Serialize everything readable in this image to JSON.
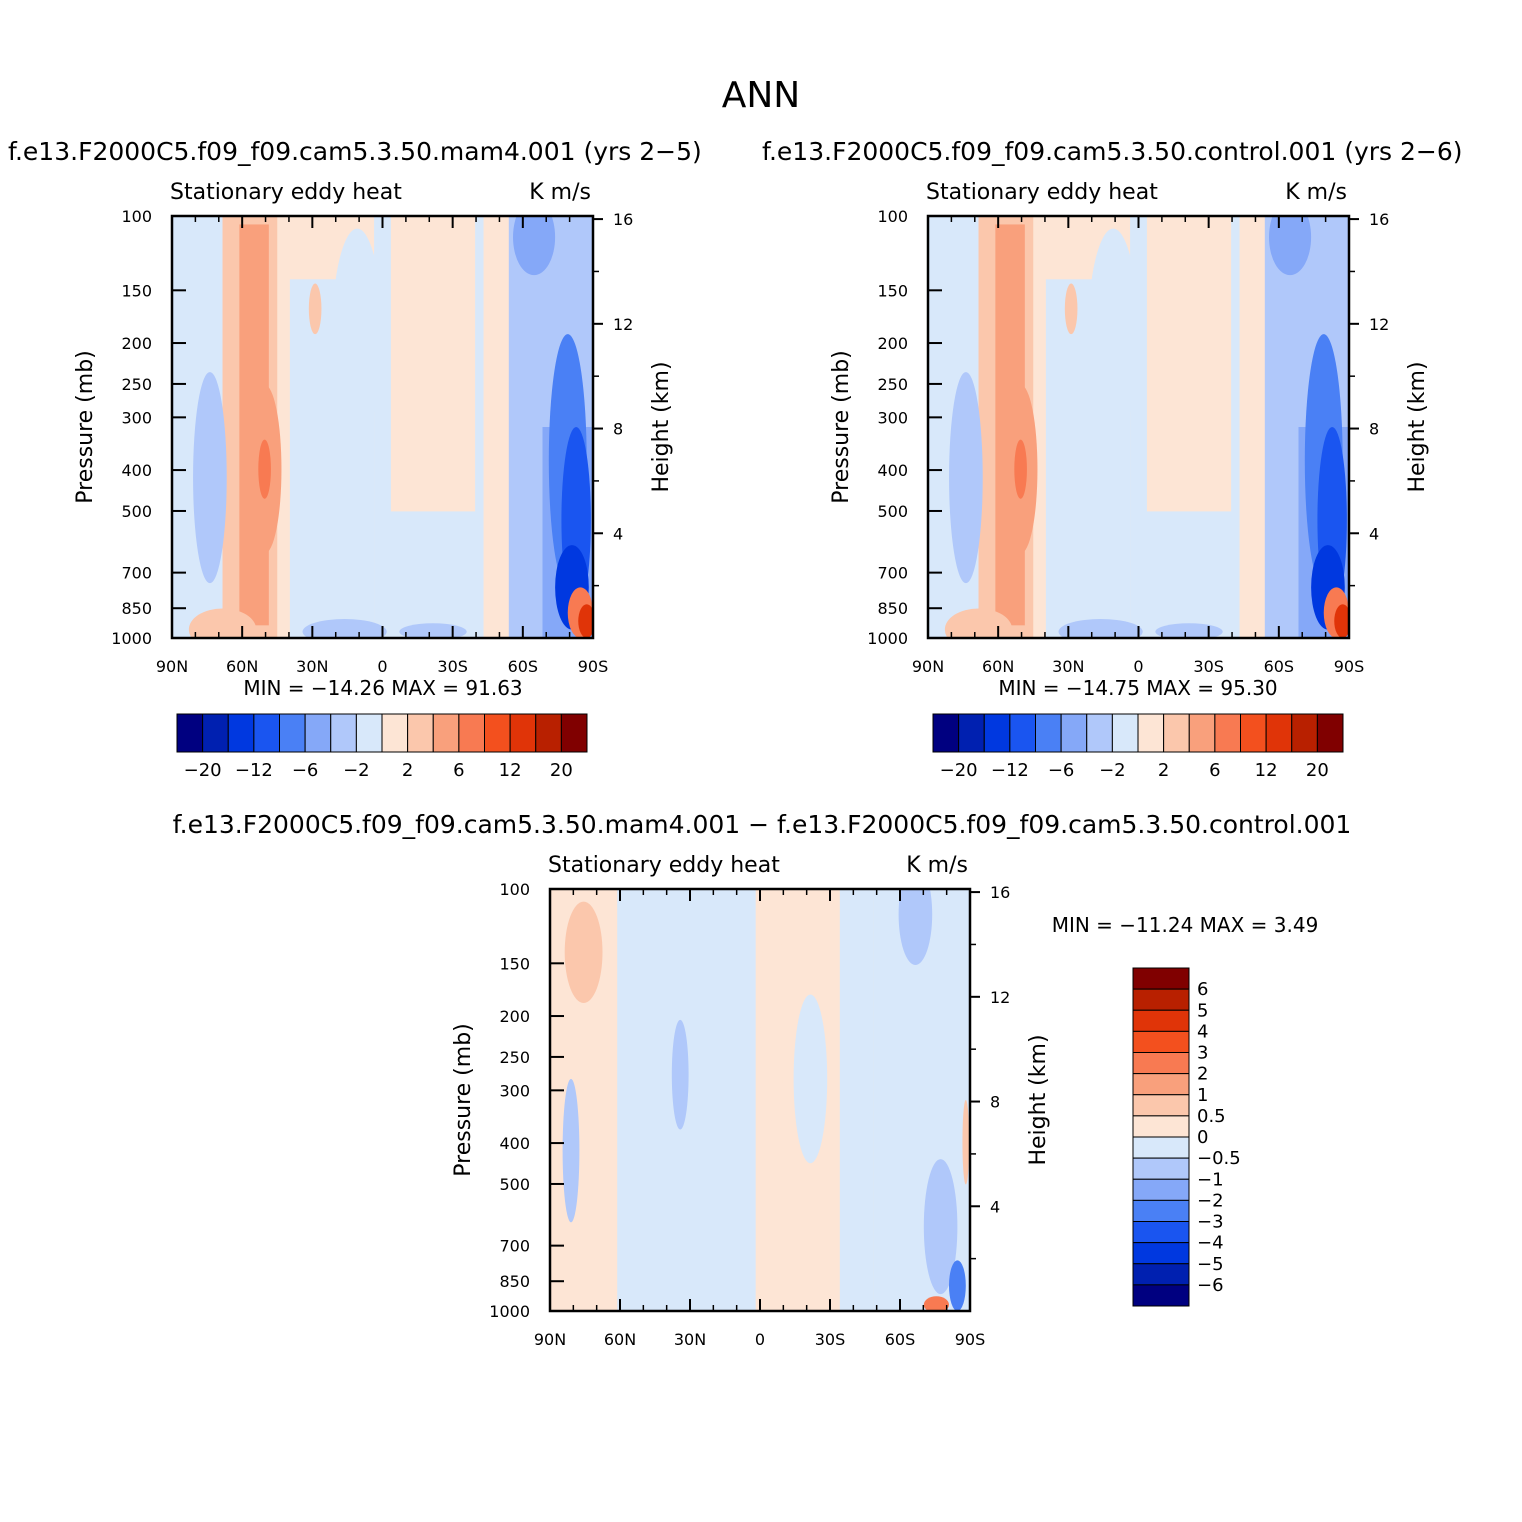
{
  "title": "ANN",
  "panels": [
    {
      "id": "p1",
      "header": "f.e13.F2000C5.f09_f09.cam5.3.50.mam4.001 (yrs 2−5)",
      "left_title": "Stationary eddy heat",
      "right_title": "K m/s",
      "ylabel": "Pressure (mb)",
      "ylabel2": "Height (km)",
      "stats": "MIN = −14.26   MAX =   91.63"
    },
    {
      "id": "p2",
      "header": "f.e13.F2000C5.f09_f09.cam5.3.50.control.001 (yrs 2−6)",
      "left_title": "Stationary eddy heat",
      "right_title": "K m/s",
      "ylabel": "Pressure (mb)",
      "ylabel2": "Height (km)",
      "stats": "MIN = −14.75   MAX =   95.30"
    },
    {
      "id": "p3",
      "header": "f.e13.F2000C5.f09_f09.cam5.3.50.mam4.001 − f.e13.F2000C5.f09_f09.cam5.3.50.control.001",
      "left_title": "Stationary eddy heat",
      "right_title": "K m/s",
      "ylabel": "Pressure (mb)",
      "ylabel2": "Height (km)",
      "stats": "MIN = −11.24   MAX =    3.49"
    }
  ],
  "axes": {
    "x_ticks": [
      "90N",
      "60N",
      "30N",
      "0",
      "30S",
      "60S",
      "90S"
    ],
    "p_ticks": [
      "100",
      "150",
      "200",
      "250",
      "300",
      "400",
      "500",
      "700",
      "850",
      "1000"
    ],
    "h_ticks": [
      "16",
      "12",
      "8",
      "4"
    ]
  },
  "colorbars": {
    "main": {
      "colors": [
        "#000080",
        "#0020b0",
        "#0038e0",
        "#1a55f0",
        "#4a80f5",
        "#85a8f8",
        "#b0c8fa",
        "#d8e8fa",
        "#fde5d5",
        "#fbc7ac",
        "#f9a07c",
        "#f87a52",
        "#f3501e",
        "#e03408",
        "#b82000",
        "#800000"
      ],
      "labels": [
        "−20",
        "−12",
        "−6",
        "−2",
        "2",
        "6",
        "12",
        "20"
      ]
    },
    "diff": {
      "colors": [
        "#000080",
        "#0020b0",
        "#0038e0",
        "#1a55f0",
        "#4a80f5",
        "#85a8f8",
        "#b0c8fa",
        "#d8e8fa",
        "#fde5d5",
        "#fbc7ac",
        "#f9a07c",
        "#f87a52",
        "#f3501e",
        "#e03408",
        "#b82000",
        "#800000"
      ],
      "labels": [
        "−6",
        "−5",
        "−4",
        "−3",
        "−2",
        "−1",
        "−0.5",
        "0",
        "0.5",
        "1",
        "2",
        "3",
        "4",
        "5",
        "6"
      ]
    }
  },
  "chart_data": [
    {
      "type": "heatmap",
      "panel": "mam4.001 (yrs 2-5)",
      "variable": "Stationary eddy heat",
      "units": "K m/s",
      "x_range": [
        "90N",
        "90S"
      ],
      "y_range_mb": [
        1000,
        100
      ],
      "min": -14.26,
      "max": 91.63
    },
    {
      "type": "heatmap",
      "panel": "control.001 (yrs 2-6)",
      "variable": "Stationary eddy heat",
      "units": "K m/s",
      "x_range": [
        "90N",
        "90S"
      ],
      "y_range_mb": [
        1000,
        100
      ],
      "min": -14.75,
      "max": 95.3
    },
    {
      "type": "heatmap",
      "panel": "mam4.001 - control.001",
      "variable": "Stationary eddy heat",
      "units": "K m/s",
      "x_range": [
        "90N",
        "90S"
      ],
      "y_range_mb": [
        1000,
        100
      ],
      "min": -11.24,
      "max": 3.49
    }
  ]
}
